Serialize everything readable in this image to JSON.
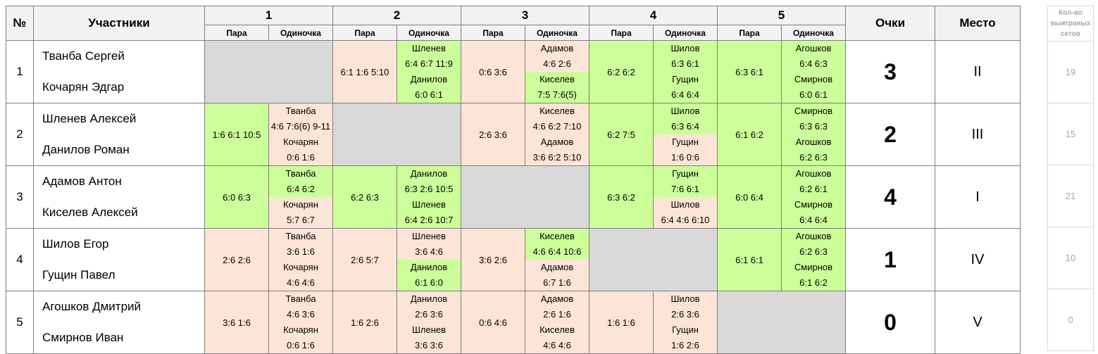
{
  "header": {
    "num": "№",
    "participants": "Участники",
    "rounds": [
      "1",
      "2",
      "3",
      "4",
      "5"
    ],
    "pair_label": "Пара",
    "single_label": "Одиночка",
    "points": "Очки",
    "place": "Место",
    "side_header": "Кол-во выиграных сетов"
  },
  "rows": [
    {
      "num": "1",
      "name1": "Тванба Сергей",
      "name2": "Кочарян Эдгар",
      "points": "3",
      "place": "II",
      "sets": "19",
      "cells": [
        {
          "self": true
        },
        {
          "pair": "6:1 1:6 5:10",
          "pair_win": false,
          "s1_name": "Шленев",
          "s1_score": "6:4 6:7 11:9",
          "s1_win": true,
          "s2_name": "Данилов",
          "s2_score": "6:0 6:1",
          "s2_win": true
        },
        {
          "pair": "0:6 3:6",
          "pair_win": false,
          "s1_name": "Адамов",
          "s1_score": "4:6 2:6",
          "s1_win": false,
          "s2_name": "Киселев",
          "s2_score": "7:5 7:6(5)",
          "s2_win": true
        },
        {
          "pair": "6:2 6:2",
          "pair_win": true,
          "s1_name": "Шилов",
          "s1_score": "6:3 6:1",
          "s1_win": true,
          "s2_name": "Гущин",
          "s2_score": "6:4 6:4",
          "s2_win": true
        },
        {
          "pair": "6:3 6:1",
          "pair_win": true,
          "s1_name": "Агошков",
          "s1_score": "6:4 6:3",
          "s1_win": true,
          "s2_name": "Смирнов",
          "s2_score": "6:0 6:1",
          "s2_win": true
        }
      ]
    },
    {
      "num": "2",
      "name1": "Шленев Алексей",
      "name2": "Данилов Роман",
      "points": "2",
      "place": "III",
      "sets": "15",
      "cells": [
        {
          "pair": "1:6 6:1 10:5",
          "pair_win": true,
          "s1_name": "Тванба",
          "s1_score": "4:6 7:6(6) 9-11",
          "s1_win": false,
          "s2_name": "Кочарян",
          "s2_score": "0:6 1:6",
          "s2_win": false
        },
        {
          "self": true
        },
        {
          "pair": "2:6 3:6",
          "pair_win": false,
          "s1_name": "Киселев",
          "s1_score": "4:6 6:2 7:10",
          "s1_win": false,
          "s2_name": "Адамов",
          "s2_score": "3:6 6:2 5:10",
          "s2_win": false
        },
        {
          "pair": "6:2 7:5",
          "pair_win": true,
          "s1_name": "Шилов",
          "s1_score": "6:3 6:4",
          "s1_win": true,
          "s2_name": "Гущин",
          "s2_score": "1:6 0:6",
          "s2_win": false
        },
        {
          "pair": "6:1 6:2",
          "pair_win": true,
          "s1_name": "Смирнов",
          "s1_score": "6:3 6:3",
          "s1_win": true,
          "s2_name": "Агошков",
          "s2_score": "6:2 6:3",
          "s2_win": true
        }
      ]
    },
    {
      "num": "3",
      "name1": "Адамов Антон",
      "name2": "Киселев Алексей",
      "points": "4",
      "place": "I",
      "sets": "21",
      "cells": [
        {
          "pair": "6:0 6:3",
          "pair_win": true,
          "s1_name": "Тванба",
          "s1_score": "6:4 6:2",
          "s1_win": true,
          "s2_name": "Кочарян",
          "s2_score": "5:7 6:7",
          "s2_win": false
        },
        {
          "pair": "6:2 6:3",
          "pair_win": true,
          "s1_name": "Данилов",
          "s1_score": "6:3 2:6 10:5",
          "s1_win": true,
          "s2_name": "Шленев",
          "s2_score": "6:4 2:6 10:7",
          "s2_win": true
        },
        {
          "self": true
        },
        {
          "pair": "6:3 6:2",
          "pair_win": true,
          "s1_name": "Гущин",
          "s1_score": "7:6 6:1",
          "s1_win": true,
          "s2_name": "Шилов",
          "s2_score": "6:4 4:6 6:10",
          "s2_win": false
        },
        {
          "pair": "6:0 6:4",
          "pair_win": true,
          "s1_name": "Агошков",
          "s1_score": "6:2 6:1",
          "s1_win": true,
          "s2_name": "Смирнов",
          "s2_score": "6:4 6:4",
          "s2_win": true
        }
      ]
    },
    {
      "num": "4",
      "name1": "Шилов Егор",
      "name2": "Гущин Павел",
      "points": "1",
      "place": "IV",
      "sets": "10",
      "cells": [
        {
          "pair": "2:6 2:6",
          "pair_win": false,
          "s1_name": "Тванба",
          "s1_score": "3:6 1:6",
          "s1_win": false,
          "s2_name": "Кочарян",
          "s2_score": "4:6 4:6",
          "s2_win": false
        },
        {
          "pair": "2:6 5:7",
          "pair_win": false,
          "s1_name": "Шленев",
          "s1_score": "3:6 4:6",
          "s1_win": false,
          "s2_name": "Данилов",
          "s2_score": "6:1 6:0",
          "s2_win": true
        },
        {
          "pair": "3:6 2:6",
          "pair_win": false,
          "s1_name": "Киселев",
          "s1_score": "4:6 6:4 10:6",
          "s1_win": true,
          "s2_name": "Адамов",
          "s2_score": "6:7 1:6",
          "s2_win": false
        },
        {
          "self": true
        },
        {
          "pair": "6:1 6:1",
          "pair_win": true,
          "s1_name": "Агошков",
          "s1_score": "6:2 6:3",
          "s1_win": true,
          "s2_name": "Смирнов",
          "s2_score": "6:1 6:2",
          "s2_win": true
        }
      ]
    },
    {
      "num": "5",
      "name1": "Агошков Дмитрий",
      "name2": "Смирнов Иван",
      "points": "0",
      "place": "V",
      "sets": "0",
      "cells": [
        {
          "pair": "3:6 1:6",
          "pair_win": false,
          "s1_name": "Тванба",
          "s1_score": "4:6 3:6",
          "s1_win": false,
          "s2_name": "Кочарян",
          "s2_score": "0:6 1:6",
          "s2_win": false
        },
        {
          "pair": "1:6 2:6",
          "pair_win": false,
          "s1_name": "Данилов",
          "s1_score": "2:6 3:6",
          "s1_win": false,
          "s2_name": "Шленев",
          "s2_score": "3:6 3:6",
          "s2_win": false
        },
        {
          "pair": "0:6 4:6",
          "pair_win": false,
          "s1_name": "Адамов",
          "s1_score": "2:6 1:6",
          "s1_win": false,
          "s2_name": "Киселев",
          "s2_score": "4:6 4:6",
          "s2_win": false
        },
        {
          "pair": "1:6 1:6",
          "pair_win": false,
          "s1_name": "Шилов",
          "s1_score": "2:6 3:6",
          "s1_win": false,
          "s2_name": "Гущин",
          "s2_score": "1:6 2:6",
          "s2_win": false
        },
        {
          "self": true
        }
      ]
    }
  ],
  "colors": {
    "win": "#ccff99",
    "lose": "#fce4d6",
    "self": "#d9d9d9",
    "header": "#f2f2f2"
  }
}
